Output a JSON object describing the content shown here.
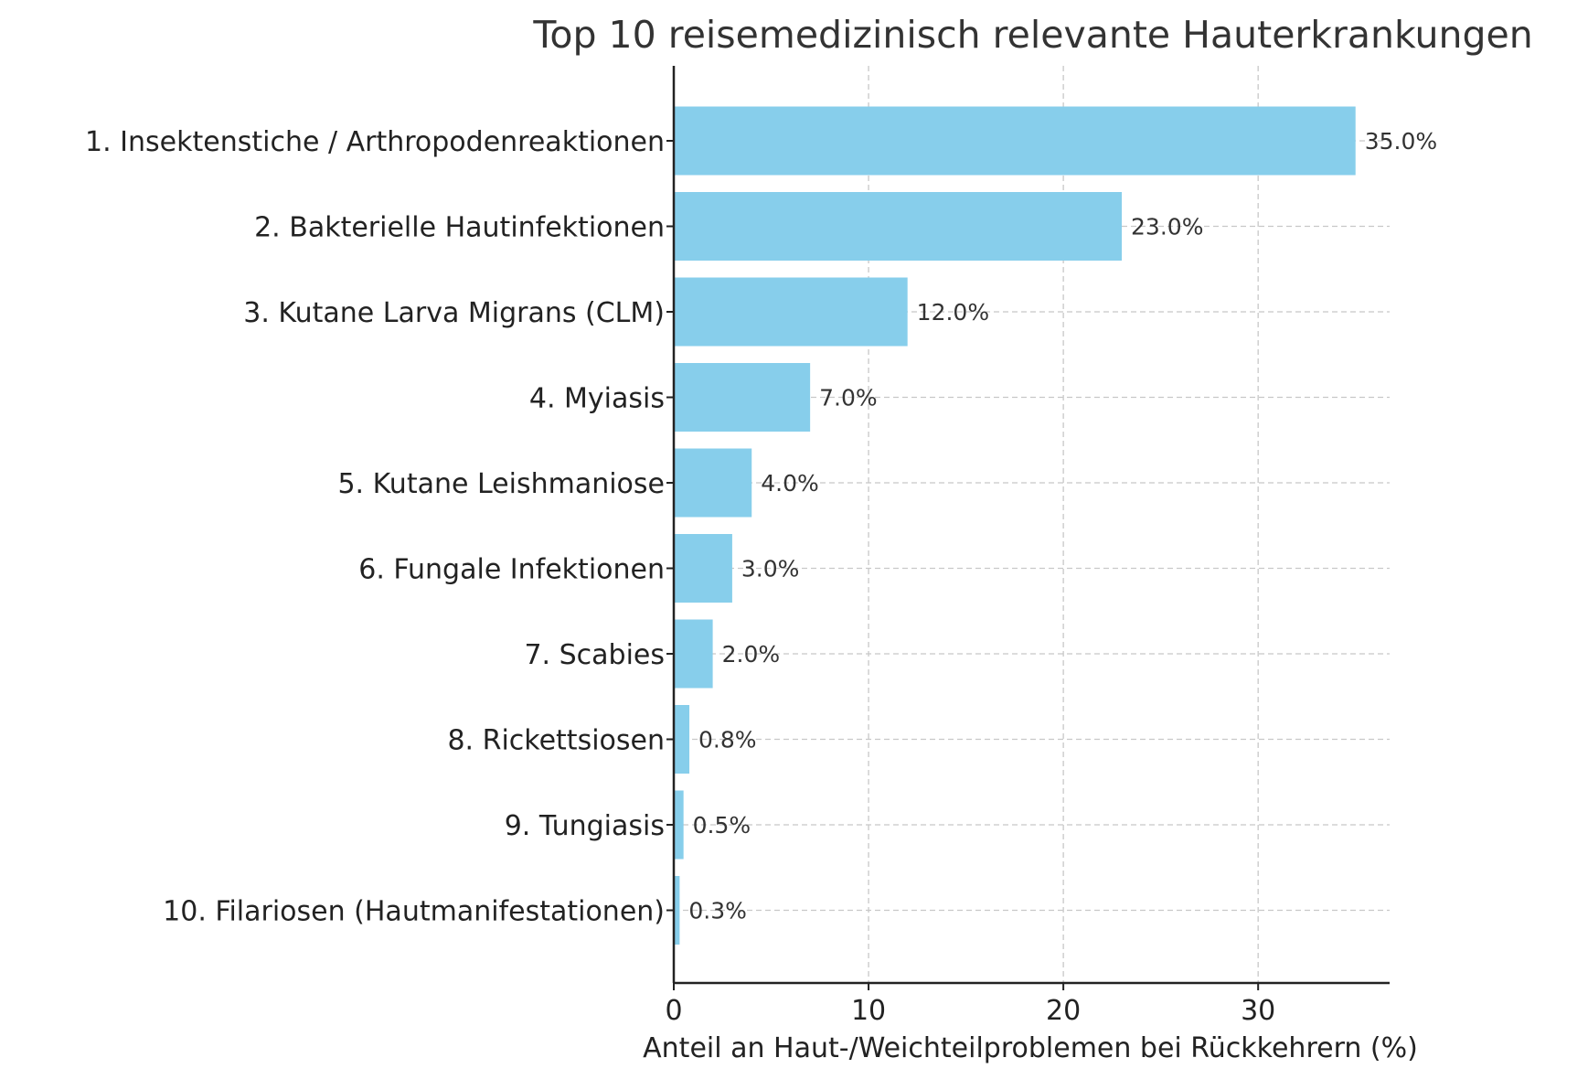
{
  "chart_data": {
    "type": "bar",
    "orientation": "horizontal",
    "title": "Top 10 reisemedizinisch relevante Hauterkrankungen",
    "xlabel": "Anteil an Haut-/Weichteilproblemen bei Rückkehrern (%)",
    "ylabel": "",
    "categories": [
      "1. Insektenstiche / Arthropodenreaktionen",
      "2. Bakterielle Hautinfektionen",
      "3. Kutane Larva Migrans (CLM)",
      "4. Myiasis",
      "5. Kutane Leishmaniose",
      "6. Fungale Infektionen",
      "7. Scabies",
      "8. Rickettsiosen",
      "9. Tungiasis",
      "10. Filariosen (Hautmanifestationen)"
    ],
    "values": [
      35.0,
      23.0,
      12.0,
      7.0,
      4.0,
      3.0,
      2.0,
      0.8,
      0.5,
      0.3
    ],
    "data_labels": [
      "35.0%",
      "23.0%",
      "12.0%",
      "7.0%",
      "4.0%",
      "3.0%",
      "2.0%",
      "0.8%",
      "0.5%",
      "0.3%"
    ],
    "xticks": [
      "0",
      "10",
      "20",
      "30"
    ],
    "xtick_values": [
      0,
      10,
      20,
      30
    ],
    "xlim": [
      0,
      36.75
    ],
    "grid": true,
    "bar_color": "#87ceeb"
  }
}
